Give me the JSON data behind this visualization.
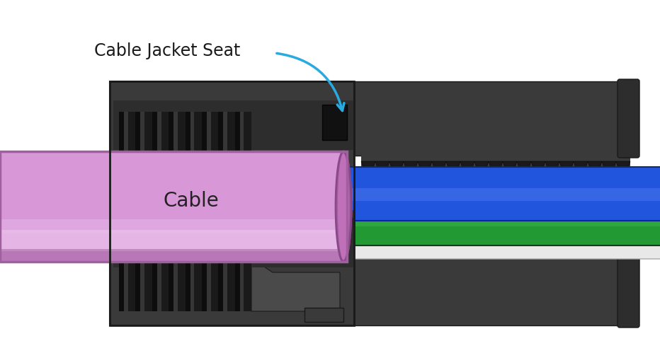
{
  "background_color": "#ffffff",
  "label_cable_jacket_seat": "Cable Jacket Seat",
  "label_cable": "Cable",
  "annotation_color": "#29aae1",
  "label_fontsize": 17,
  "cable_label_fontsize": 20,
  "dark_body_color": "#2d2d2d",
  "dark_body_mid": "#3a3a3a",
  "dark_body_light": "#4a4a4a",
  "dark_body_dark": "#1a1a1a",
  "dark_body_highlight": "#606060",
  "cable_pink_main": "#d898d8",
  "cable_pink_light": "#eac0ea",
  "cable_pink_highlight": "#f0d0f0",
  "cable_pink_dark": "#a060a0",
  "cable_pink_shadow": "#8a4888",
  "wire_blue": "#1a44cc",
  "wire_blue_mid": "#2255dd",
  "wire_blue_light": "#5580ee",
  "wire_blue_dark": "#0a2888",
  "wire_green": "#1a7a28",
  "wire_green_mid": "#229933",
  "wire_green_light": "#44bb55",
  "wire_green_dark": "#0a4414",
  "wire_white": "#dcdcdc",
  "wire_white_mid": "#e8e8e8",
  "wire_white_dark": "#aaaaaa"
}
